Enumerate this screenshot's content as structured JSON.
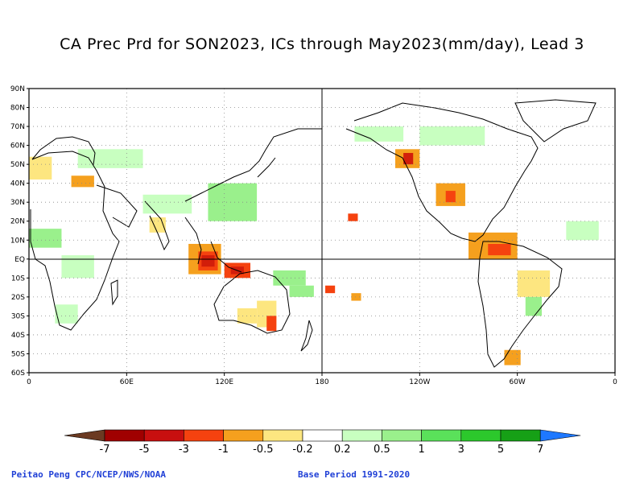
{
  "title": "CA Prec Prd for SON2023, ICs through May2023(mm/day), Lead 3",
  "lat_labels": [
    "90N",
    "80N",
    "70N",
    "60N",
    "50N",
    "40N",
    "30N",
    "20N",
    "10N",
    "EQ",
    "10S",
    "20S",
    "30S",
    "40S",
    "50S",
    "60S"
  ],
  "lon_labels": [
    "0",
    "60E",
    "120E",
    "180",
    "120W",
    "60W",
    "0"
  ],
  "colorbar": {
    "labels": [
      "-7",
      "-5",
      "-3",
      "-1",
      "-0.5",
      "-0.2",
      "0.2",
      "0.5",
      "1",
      "3",
      "5",
      "7"
    ],
    "colors": [
      "#6b3a22",
      "#a00000",
      "#c80f0f",
      "#f5420f",
      "#f5a01e",
      "#fde680",
      "#ffffff",
      "#c8ffc0",
      "#9af08c",
      "#5ae15a",
      "#2cc82c",
      "#16a016",
      "#1e78ff"
    ]
  },
  "footer": {
    "left": "Peitao Peng CPC/NCEP/NWS/NOAA",
    "right": "Base Period 1991-2020"
  },
  "anomaly_colors": {
    "dry_strong": "#d21e0a",
    "dry": "#f5420f",
    "dry_mod": "#f5a01e",
    "dry_weak": "#fde680",
    "wet_weak": "#c8ffc0",
    "wet": "#9af08c",
    "wet_mod": "#5ae15a"
  }
}
